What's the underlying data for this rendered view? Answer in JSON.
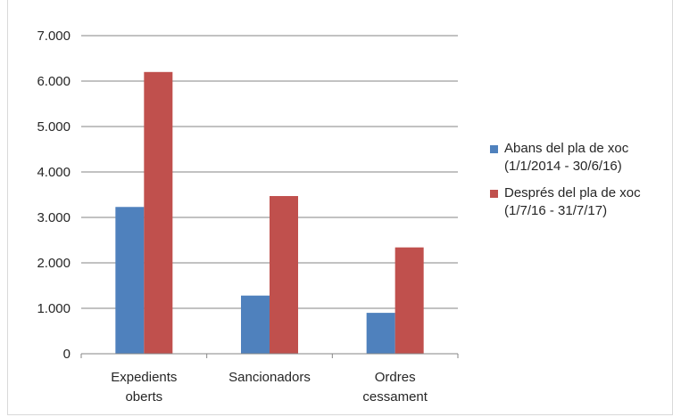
{
  "chart_data": {
    "type": "bar",
    "categories": [
      [
        "Expedients",
        "oberts"
      ],
      [
        "Sancionadors"
      ],
      [
        "Ordres",
        "cessament"
      ]
    ],
    "series": [
      {
        "name": [
          "Abans  del pla de xoc",
          "(1/1/2014 - 30/6/16)"
        ],
        "values": [
          3230,
          1280,
          900
        ],
        "color": "#4f81bd"
      },
      {
        "name": [
          "Després del pla de xoc",
          "(1/7/16 - 31/7/17)"
        ],
        "values": [
          6200,
          3470,
          2340
        ],
        "color": "#c0504d"
      }
    ],
    "ylim": [
      0,
      7000
    ],
    "yticks": [
      "0",
      "1.000",
      "2.000",
      "3.000",
      "4.000",
      "5.000",
      "6.000",
      "7.000"
    ],
    "grid": true,
    "legend_position": "right"
  }
}
